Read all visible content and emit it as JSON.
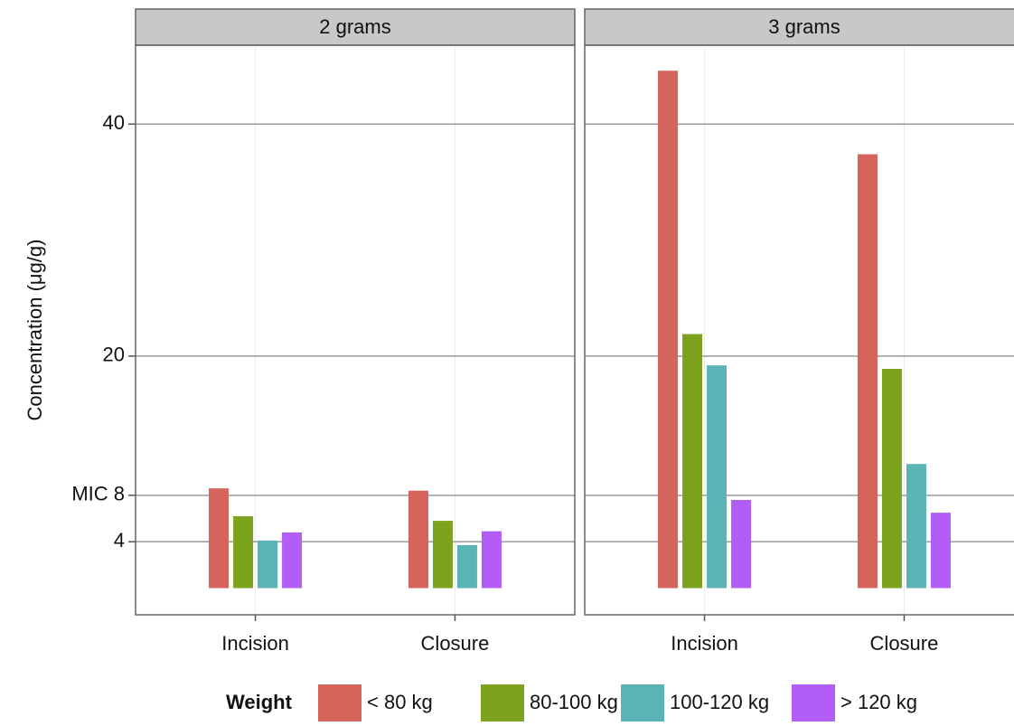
{
  "chart_data": {
    "type": "bar",
    "ylabel": "Concentration (μg/g)",
    "facets": [
      "2 grams",
      "3 grams"
    ],
    "categories": [
      "Incision",
      "Closure"
    ],
    "legend_title": "Weight",
    "series": [
      {
        "name": "< 80 kg",
        "color": "#d4645c",
        "values": [
          [
            8.6,
            8.4
          ],
          [
            44.6,
            37.4
          ]
        ]
      },
      {
        "name": "80-100 kg",
        "color": "#7ca21e",
        "values": [
          [
            6.2,
            5.8
          ],
          [
            21.9,
            18.9
          ]
        ]
      },
      {
        "name": "100-120 kg",
        "color": "#5ab4b6",
        "values": [
          [
            4.1,
            3.7
          ],
          [
            19.2,
            10.7
          ]
        ]
      },
      {
        "name": "> 120 kg",
        "color": "#b25ef6",
        "values": [
          [
            4.8,
            4.9
          ],
          [
            7.6,
            6.5
          ]
        ]
      }
    ],
    "ylim": [
      -2.3,
      46.8
    ],
    "yticks": [
      4,
      {
        "value": 8,
        "label": "MIC 8"
      },
      20,
      40
    ],
    "grid": true
  }
}
